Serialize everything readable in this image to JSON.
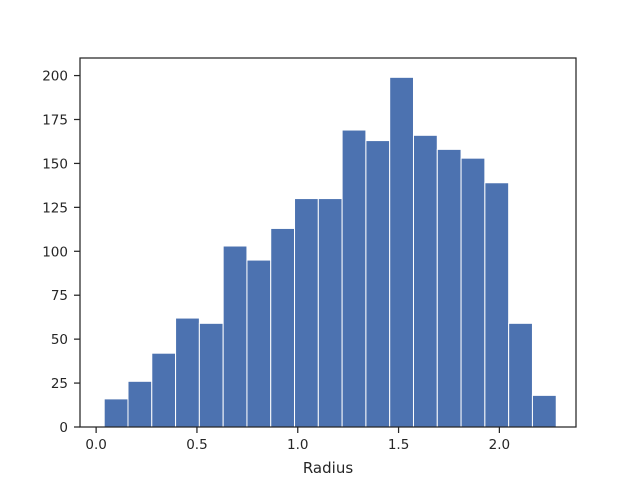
{
  "chart_data": {
    "type": "histogram",
    "title": "",
    "xlabel": "Radius",
    "ylabel": "",
    "xlim": [
      -0.08,
      2.38
    ],
    "ylim": [
      0,
      210
    ],
    "x_ticks": [
      0.0,
      0.5,
      1.0,
      1.5,
      2.0
    ],
    "x_tick_labels": [
      "0.0",
      "0.5",
      "1.0",
      "1.5",
      "2.0"
    ],
    "y_ticks": [
      0,
      25,
      50,
      75,
      100,
      125,
      150,
      175,
      200
    ],
    "y_tick_labels": [
      "0",
      "25",
      "50",
      "75",
      "100",
      "125",
      "150",
      "175",
      "200"
    ],
    "grid": false,
    "bin_edges": [
      0.04,
      0.158,
      0.276,
      0.394,
      0.512,
      0.63,
      0.748,
      0.866,
      0.984,
      1.102,
      1.22,
      1.338,
      1.456,
      1.574,
      1.692,
      1.81,
      1.928,
      2.046,
      2.164,
      2.282
    ],
    "counts": [
      16,
      26,
      42,
      62,
      59,
      103,
      95,
      113,
      130,
      130,
      169,
      163,
      199,
      166,
      158,
      153,
      139,
      59,
      18
    ],
    "bar_color": "#4c72b0",
    "edge_color": "#ffffff",
    "axis_color": "#262626"
  }
}
